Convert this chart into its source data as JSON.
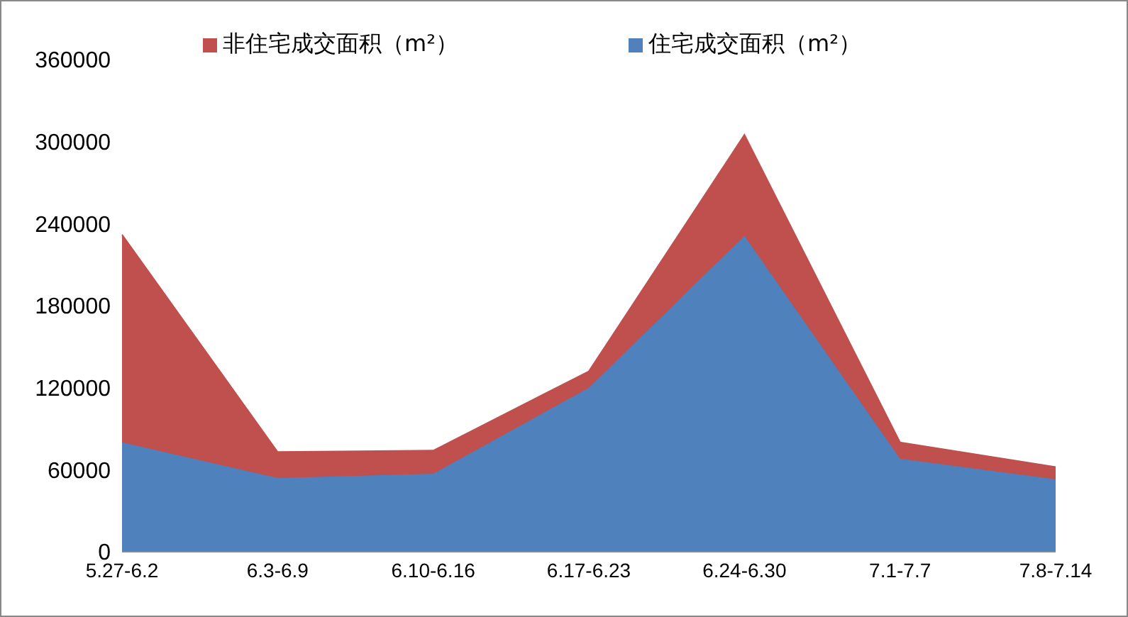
{
  "chart_data": {
    "type": "area",
    "stacked": true,
    "categories": [
      "5.27-6.2",
      "6.3-6.9",
      "6.10-6.16",
      "6.17-6.23",
      "6.24-6.30",
      "7.1-7.7",
      "7.8-7.14"
    ],
    "series": [
      {
        "name": "住宅成交面积（m²）",
        "color": "#4f81bd",
        "values": [
          80000,
          54000,
          57000,
          120000,
          231000,
          68000,
          53000
        ]
      },
      {
        "name": "非住宅成交面积（m²）",
        "color": "#c0504d",
        "values": [
          152000,
          19000,
          17000,
          12000,
          74000,
          12000,
          9000
        ]
      }
    ],
    "ylim": [
      0,
      360000
    ],
    "yticks": [
      0,
      60000,
      120000,
      180000,
      240000,
      300000,
      360000
    ],
    "grid": false,
    "legend": "top"
  }
}
